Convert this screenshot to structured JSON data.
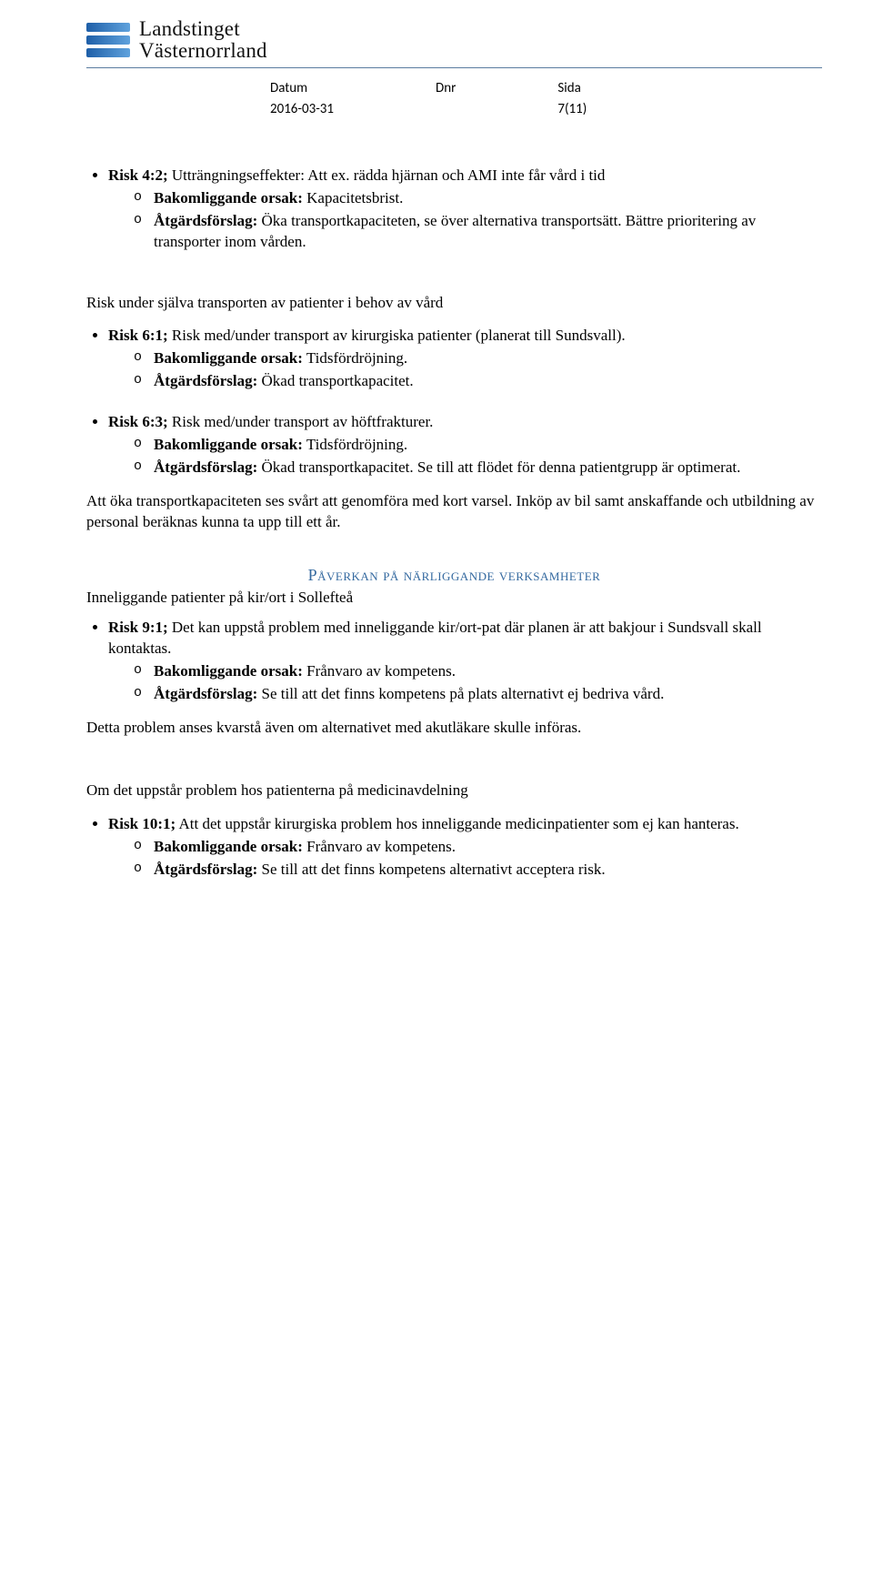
{
  "logo": {
    "line1": "Landstinget",
    "line2": "Västernorrland"
  },
  "meta": {
    "labels": {
      "datum": "Datum",
      "dnr": "Dnr",
      "sida": "Sida"
    },
    "values": {
      "datum": "2016-03-31",
      "dnr": "",
      "sida": "7(11)"
    }
  },
  "colors": {
    "rule": "#5a7ca0",
    "heading": "#356aa0"
  },
  "block1": {
    "risk": {
      "label": "Risk 4:2;",
      "text": " Utträngningseffekter: Att ex. rädda hjärnan och AMI inte får vård i tid"
    },
    "cause": {
      "label": "Bakomliggande orsak:",
      "text": " Kapacitetsbrist."
    },
    "action": {
      "label": "Åtgärdsförslag:",
      "text": " Öka transportkapaciteten, se över alternativa transportsätt. Bättre prioritering av transporter inom vården."
    }
  },
  "subhead1": "Risk under själva transporten av patienter i behov av vård",
  "block2": {
    "risk": {
      "label": "Risk 6:1;",
      "text": " Risk med/under transport av kirurgiska patienter (planerat till Sundsvall)."
    },
    "cause": {
      "label": "Bakomliggande orsak:",
      "text": " Tidsfördröjning."
    },
    "action": {
      "label": "Åtgärdsförslag:",
      "text": " Ökad transportkapacitet."
    }
  },
  "block3": {
    "risk": {
      "label": "Risk 6:3;",
      "text": " Risk med/under transport av höftfrakturer."
    },
    "cause": {
      "label": "Bakomliggande orsak:",
      "text": " Tidsfördröjning."
    },
    "action": {
      "label": "Åtgärdsförslag:",
      "text": " Ökad transportkapacitet. Se till att flödet för denna patientgrupp är optimerat."
    }
  },
  "para1": "Att öka transportkapaciteten ses svårt att genomföra med kort varsel. Inköp av bil samt anskaffande och utbildning av personal beräknas kunna ta upp till ett år.",
  "section2": {
    "heading": "Påverkan på närliggande verksamheter",
    "intro": "Inneliggande patienter på kir/ort i Sollefteå"
  },
  "block4": {
    "risk": {
      "label": "Risk 9:1;",
      "text": " Det kan uppstå problem med inneliggande kir/ort-pat där planen är att bakjour i Sundsvall skall kontaktas."
    },
    "cause": {
      "label": "Bakomliggande orsak:",
      "text": " Frånvaro av kompetens."
    },
    "action": {
      "label": "Åtgärdsförslag:",
      "text": " Se till att det finns kompetens på plats alternativt ej bedriva vård."
    }
  },
  "para2": "Detta problem anses kvarstå även om alternativet med akutläkare skulle införas.",
  "subhead2": "Om det uppstår problem hos patienterna på medicinavdelning",
  "block5": {
    "risk": {
      "label": "Risk 10:1;",
      "text": " Att det uppstår kirurgiska problem hos inneliggande medicinpatienter som ej kan hanteras."
    },
    "cause": {
      "label": "Bakomliggande orsak:",
      "text": " Frånvaro av kompetens."
    },
    "action": {
      "label": "Åtgärdsförslag:",
      "text": " Se till att det finns kompetens alternativt acceptera risk."
    }
  }
}
